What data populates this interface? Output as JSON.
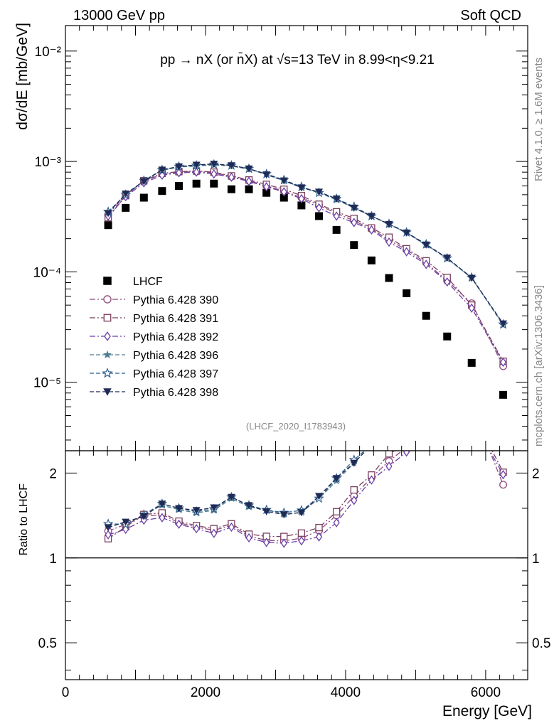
{
  "header": {
    "left": "13000 GeV pp",
    "right": "Soft QCD",
    "title": "pp → nX (or n̄X) at √s=13 TeV in 8.99<η<9.21",
    "analysis": "(LHCF_2020_I1783943)",
    "side_rivet": "Rivet 4.1.0, ≥ 1.6M events",
    "side_url": "mcplots.cern.ch [arXiv:1306.3436]"
  },
  "chart_data": [
    {
      "type": "scatter",
      "panel": "main",
      "title": "pp → nX (or n̄X) at √s=13 TeV in 8.99<η<9.21",
      "xlabel": "Energy [GeV]",
      "ylabel": "dσ/dE [mb/GeV]",
      "yscale": "log",
      "xlim": [
        0,
        6600
      ],
      "ylim": [
        2.4e-06,
        0.017
      ],
      "x_ticks": [
        "0",
        "2000",
        "4000",
        "6000"
      ],
      "y_ticks": [
        "10⁻²",
        "10⁻³",
        "10⁻⁴",
        "10⁻⁵"
      ],
      "legend_position": "lower-left",
      "x": [
        610,
        860,
        1120,
        1380,
        1620,
        1870,
        2120,
        2370,
        2620,
        2870,
        3120,
        3370,
        3620,
        3870,
        4120,
        4370,
        4620,
        4870,
        5150,
        5450,
        5800,
        6250
      ],
      "series": [
        {
          "name": "LHCF",
          "marker": "square-filled",
          "color": "#000000",
          "line": "none",
          "values": [
            0.000265,
            0.00038,
            0.00047,
            0.00054,
            0.0006,
            0.00063,
            0.00063,
            0.00056,
            0.00056,
            0.00052,
            0.00047,
            0.0004,
            0.00032,
            0.00024,
            0.000175,
            0.000127,
            8.8e-05,
            6.4e-05,
            4e-05,
            2.6e-05,
            1.5e-05,
            7.7e-06
          ]
        },
        {
          "name": "Pythia 6.428 390",
          "marker": "circle-open",
          "color": "#8e4a7e",
          "line": "dashdot",
          "values": [
            0.00033,
            0.0005,
            0.00066,
            0.00077,
            0.0008,
            0.00081,
            0.00079,
            0.00073,
            0.00067,
            0.0006,
            0.00054,
            0.00047,
            0.0004,
            0.00034,
            0.00029,
            0.000245,
            0.000194,
            0.000158,
            0.000121,
            8.3e-05,
            5.2e-05,
            1.4e-05
          ]
        },
        {
          "name": "Pythia 6.428 391",
          "marker": "square-open",
          "color": "#7a3f5e",
          "line": "dashdot",
          "values": [
            0.00031,
            0.00049,
            0.00067,
            0.00078,
            0.00081,
            0.00082,
            0.0008,
            0.00074,
            0.00068,
            0.00062,
            0.00056,
            0.00049,
            0.00041,
            0.00035,
            0.000305,
            0.00025,
            0.000206,
            0.000162,
            0.000126,
            8.9e-05,
            5e-05,
            1.55e-05
          ]
        },
        {
          "name": "Pythia 6.428 392",
          "marker": "diamond-open",
          "color": "#6b3fa8",
          "line": "dashdot",
          "values": [
            0.00032,
            0.00048,
            0.00064,
            0.00075,
            0.00079,
            0.0008,
            0.00077,
            0.00072,
            0.00066,
            0.00059,
            0.00053,
            0.00046,
            0.00038,
            0.00032,
            0.00028,
            0.00024,
            0.000186,
            0.000152,
            0.000117,
            8.1e-05,
            4.7e-05,
            1.52e-05
          ]
        },
        {
          "name": "Pythia 6.428 396",
          "marker": "star-filled",
          "color": "#4e7f8f",
          "line": "dashed",
          "values": [
            0.00035,
            0.0005,
            0.00067,
            0.00083,
            0.00089,
            0.00091,
            0.00093,
            0.00091,
            0.00085,
            0.00077,
            0.00067,
            0.00058,
            0.00052,
            0.00045,
            0.00038,
            0.00032,
            0.00027,
            0.000226,
            0.000175,
            0.000132,
            8.8e-05,
            3.3e-05
          ]
        },
        {
          "name": "Pythia 6.428 397",
          "marker": "star-open",
          "color": "#2f5f8e",
          "line": "dashed",
          "values": [
            0.00035,
            0.0005,
            0.00067,
            0.00084,
            0.0009,
            0.00092,
            0.00094,
            0.00092,
            0.00086,
            0.00077,
            0.00068,
            0.00059,
            0.00052,
            0.00046,
            0.00039,
            0.00032,
            0.000272,
            0.000228,
            0.000178,
            0.000133,
            8.9e-05,
            3.35e-05
          ]
        },
        {
          "name": "Pythia 6.428 398",
          "marker": "triangle-down-filled",
          "color": "#1f2a55",
          "line": "dashed",
          "values": [
            0.00034,
            0.00051,
            0.00066,
            0.00084,
            0.0009,
            0.00093,
            0.00095,
            0.00092,
            0.00086,
            0.00076,
            0.00067,
            0.00058,
            0.00053,
            0.00046,
            0.00038,
            0.00032,
            0.00027,
            0.000226,
            0.000176,
            0.000134,
            8.8e-05,
            3.4e-05
          ]
        }
      ]
    },
    {
      "type": "line",
      "panel": "ratio",
      "ylabel": "Ratio to LHCF",
      "xlabel": "Energy [GeV]",
      "yscale": "log",
      "xlim": [
        0,
        6600
      ],
      "ylim": [
        0.37,
        2.4
      ],
      "x_ticks": [
        "0",
        "2000",
        "4000",
        "6000"
      ],
      "y_ticks": [
        "2",
        "1",
        "0.5"
      ],
      "y_ticks_right": [
        "2",
        "1",
        "0.5"
      ],
      "reference_line": 1
    }
  ]
}
